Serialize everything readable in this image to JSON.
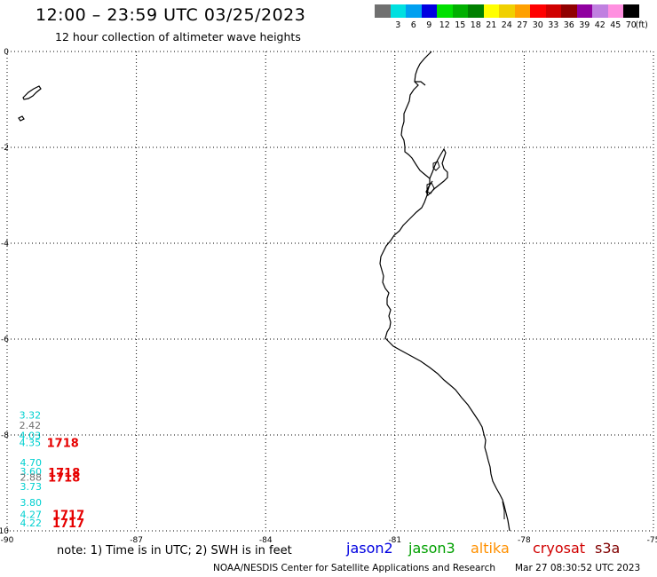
{
  "header": {
    "title": "12:00 – 23:59 UTC 03/25/2023",
    "subtitle": "12 hour collection of altimeter wave heights"
  },
  "scale": {
    "colors": [
      "#707070",
      "#00e0e0",
      "#00a0f0",
      "#0000e0",
      "#00e000",
      "#00b000",
      "#008000",
      "#ffff00",
      "#f0d000",
      "#ffa000",
      "#ff0000",
      "#d00000",
      "#900000",
      "#9000a0",
      "#c080e0",
      "#ff90e0",
      "#000000"
    ],
    "labels": [
      "",
      "3",
      "6",
      "9",
      "12",
      "15",
      "18",
      "21",
      "24",
      "27",
      "30",
      "33",
      "36",
      "39",
      "42",
      "45",
      "70"
    ],
    "unit": "(ft)"
  },
  "map": {
    "lat_labels": [
      "0",
      "-2",
      "-4",
      "-6",
      "-8",
      "-10"
    ],
    "lon_labels": [
      "-90",
      "-87",
      "-84",
      "-81",
      "-78",
      "-75"
    ],
    "coast_color": "#000000",
    "grid_color": "#000000"
  },
  "observations": [
    {
      "value": "3.32",
      "color": "#00d0d0",
      "lat": -7.66,
      "lon": -89.72
    },
    {
      "value": "2.42",
      "color": "#707070",
      "lat": -7.87,
      "lon": -89.72
    },
    {
      "value": "4.03",
      "color": "#00d0d0",
      "lat": -8.08,
      "lon": -89.72
    },
    {
      "value": "4.35",
      "color": "#00d0d0",
      "lat": -8.23,
      "lon": -89.72
    },
    {
      "value": "4.70",
      "color": "#00d0d0",
      "lat": -8.65,
      "lon": -89.7
    },
    {
      "value": "3.60",
      "color": "#00d0d0",
      "lat": -8.83,
      "lon": -89.7
    },
    {
      "value": "2.88",
      "color": "#707070",
      "lat": -8.95,
      "lon": -89.7
    },
    {
      "value": "3.73",
      "color": "#00d0d0",
      "lat": -9.15,
      "lon": -89.7
    },
    {
      "value": "3.80",
      "color": "#00d0d0",
      "lat": -9.48,
      "lon": -89.7
    },
    {
      "value": "4.27",
      "color": "#00d0d0",
      "lat": -9.73,
      "lon": -89.7
    },
    {
      "value": "4.22",
      "color": "#00d0d0",
      "lat": -9.91,
      "lon": -89.7
    }
  ],
  "pass_times": [
    {
      "text": "1718",
      "lat": -8.23,
      "lon": -89.08
    },
    {
      "text": "1718",
      "lat": -8.85,
      "lon": -89.05
    },
    {
      "text": "1718",
      "lat": -8.95,
      "lon": -89.05
    },
    {
      "text": "1717",
      "lat": -9.73,
      "lon": -88.95
    },
    {
      "text": "1717",
      "lat": -9.91,
      "lon": -88.95
    }
  ],
  "footer": {
    "note": "note: 1) Time is in UTC; 2) SWH is in feet",
    "legend": [
      {
        "name": "jason2",
        "color": "#0000e0"
      },
      {
        "name": "jason3",
        "color": "#00a000"
      },
      {
        "name": "altika",
        "color": "#ff9000"
      },
      {
        "name": "cryosat",
        "color": "#d00000"
      },
      {
        "name": "s3a",
        "color": "#800000"
      }
    ],
    "credit": "NOAA/NESDIS Center for Satellite Applications and Research",
    "date_stamp": "Mar 27 08:30:52 UTC 2023"
  }
}
